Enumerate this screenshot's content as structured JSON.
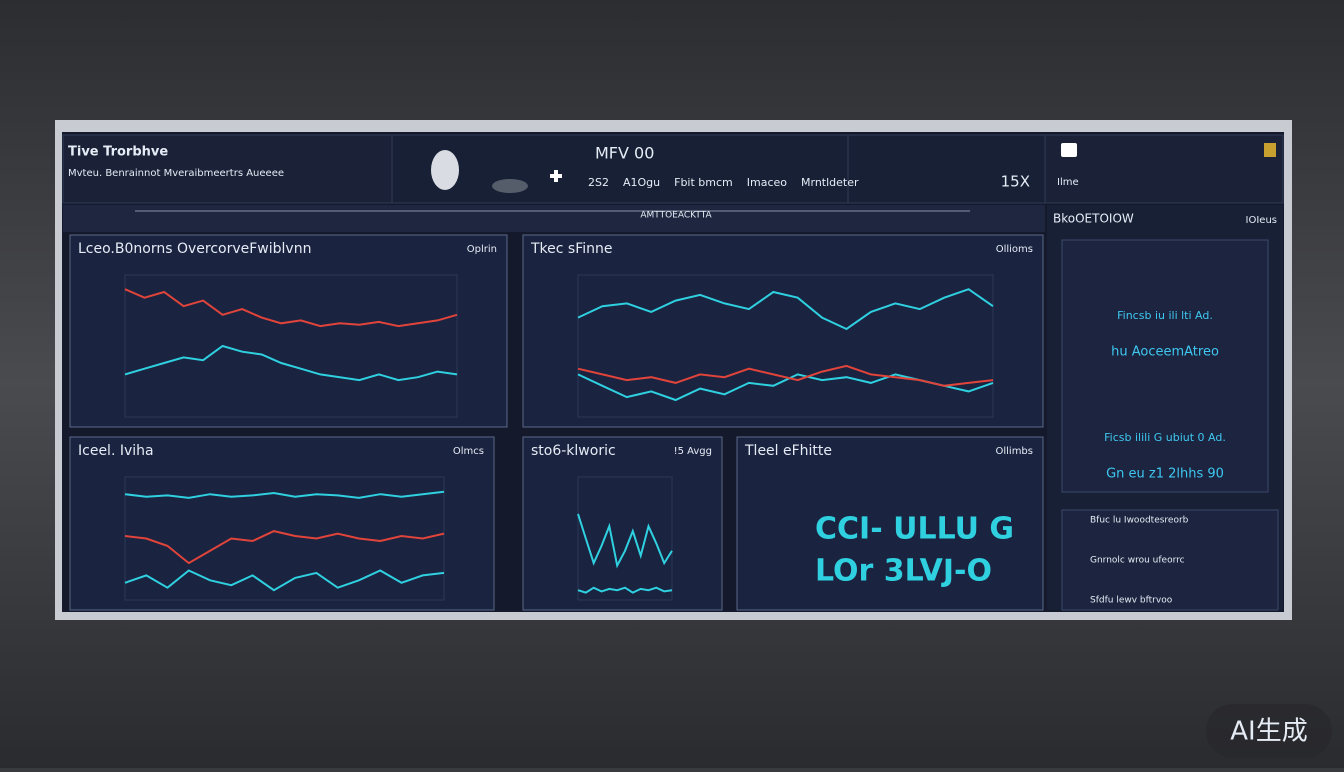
{
  "header": {
    "title": "Tive Trorbhve",
    "subtitle": "Mvteu. Benrainnot Mveraibmeertrs Aueeee",
    "center_title": "MFV 00",
    "center_links": [
      "2S2",
      "A1Ogu",
      "Fbit bmcm",
      "Imaceo",
      "Mrntldeter"
    ],
    "zoom": "15X",
    "right_label": "Ilme"
  },
  "nav": {
    "label": "AMTTOEACKTTA"
  },
  "sidebar": {
    "title": "BkoOETOIOW",
    "badge": "IOIeus",
    "rows": [
      "Fincsb iu ili lti Ad.",
      "hu AoceemAtreo",
      "Ficsb ilili G ubiut 0 Ad.",
      "Gn eu z1 2lhhs 90"
    ],
    "list": [
      "Bfuc lu Iwoodtesreorb",
      "Gnrnolc wrou ufeorrc",
      "Sfdfu lewv bftrvoo"
    ]
  },
  "panels": [
    {
      "title": "Lceo.B0norns OvercorveFwiblvnn",
      "tag": "Oplrin",
      "series": [
        {
          "color": "#e0443a",
          "values": [
            90,
            84,
            88,
            78,
            82,
            72,
            76,
            70,
            66,
            68,
            64,
            66,
            65,
            67,
            64,
            66,
            68,
            72
          ]
        },
        {
          "color": "#2fd0e0",
          "values": [
            30,
            34,
            38,
            42,
            40,
            50,
            46,
            44,
            38,
            34,
            30,
            28,
            26,
            30,
            26,
            28,
            32,
            30
          ]
        }
      ]
    },
    {
      "title": "Tkec sFinne",
      "tag": "Ollioms",
      "series": [
        {
          "color": "#2fd0e0",
          "values": [
            70,
            78,
            80,
            74,
            82,
            86,
            80,
            76,
            88,
            84,
            70,
            62,
            74,
            80,
            76,
            84,
            90,
            78
          ]
        },
        {
          "color": "#2fd0e0",
          "values": [
            30,
            22,
            14,
            18,
            12,
            20,
            16,
            24,
            22,
            30,
            26,
            28,
            24,
            30,
            26,
            22,
            18,
            24
          ]
        },
        {
          "color": "#e0443a",
          "values": [
            34,
            30,
            26,
            28,
            24,
            30,
            28,
            34,
            30,
            26,
            32,
            36,
            30,
            28,
            26,
            22,
            24,
            26
          ]
        }
      ]
    },
    {
      "title": "Iceel. Iviha",
      "tag": "Olmcs",
      "series": [
        {
          "color": "#2fd0e0",
          "values": [
            86,
            84,
            85,
            83,
            86,
            84,
            85,
            87,
            84,
            86,
            85,
            83,
            86,
            84,
            86,
            88
          ]
        },
        {
          "color": "#e0443a",
          "values": [
            52,
            50,
            44,
            30,
            40,
            50,
            48,
            56,
            52,
            50,
            54,
            50,
            48,
            52,
            50,
            54
          ]
        },
        {
          "color": "#2fd0e0",
          "values": [
            14,
            20,
            10,
            24,
            16,
            12,
            20,
            8,
            18,
            22,
            10,
            16,
            24,
            14,
            20,
            22
          ]
        }
      ]
    },
    {
      "title": "sto6-klworic",
      "tag": "!5 Avgg",
      "series": [
        {
          "color": "#2fd0e0",
          "values": [
            70,
            50,
            30,
            44,
            60,
            28,
            40,
            56,
            36,
            60,
            46,
            30,
            40
          ]
        },
        {
          "color": "#2fd0e0",
          "values": [
            8,
            6,
            10,
            7,
            9,
            8,
            10,
            6,
            9,
            8,
            10,
            7,
            8
          ]
        }
      ]
    },
    {
      "title": "Tleel eFhitte",
      "tag": "Ollimbs",
      "big_text": [
        "CCI- ULLU G",
        "LOr 3LVJ-O"
      ]
    }
  ],
  "watermark": "AI生成"
}
